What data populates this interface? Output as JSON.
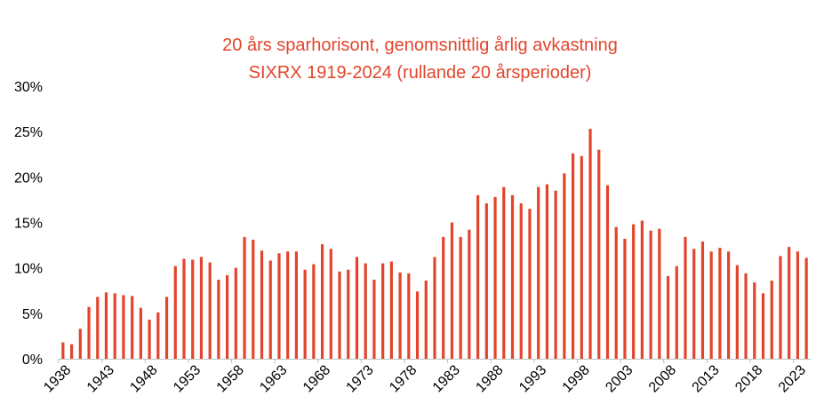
{
  "chart_data": {
    "type": "bar",
    "title": "20 års sparhorisont, genomsnittlig årlig avkastning",
    "subtitle": "SIXRX 1919-2024 (rullande 20 årsperioder)",
    "xlabel": "",
    "ylabel": "",
    "ylim": [
      0,
      30
    ],
    "yticks": [
      "0%",
      "5%",
      "10%",
      "15%",
      "20%",
      "25%",
      "30%"
    ],
    "ytick_values": [
      0,
      5,
      10,
      15,
      20,
      25,
      30
    ],
    "xtick_labels": [
      "1938",
      "1943",
      "1948",
      "1953",
      "1958",
      "1963",
      "1968",
      "1973",
      "1978",
      "1983",
      "1988",
      "1993",
      "1998",
      "2003",
      "2008",
      "2013",
      "2018",
      "2023"
    ],
    "categories": [
      1938,
      1939,
      1940,
      1941,
      1942,
      1943,
      1944,
      1945,
      1946,
      1947,
      1948,
      1949,
      1950,
      1951,
      1952,
      1953,
      1954,
      1955,
      1956,
      1957,
      1958,
      1959,
      1960,
      1961,
      1962,
      1963,
      1964,
      1965,
      1966,
      1967,
      1968,
      1969,
      1970,
      1971,
      1972,
      1973,
      1974,
      1975,
      1976,
      1977,
      1978,
      1979,
      1980,
      1981,
      1982,
      1983,
      1984,
      1985,
      1986,
      1987,
      1988,
      1989,
      1990,
      1991,
      1992,
      1993,
      1994,
      1995,
      1996,
      1997,
      1998,
      1999,
      2000,
      2001,
      2002,
      2003,
      2004,
      2005,
      2006,
      2007,
      2008,
      2009,
      2010,
      2011,
      2012,
      2013,
      2014,
      2015,
      2016,
      2017,
      2018,
      2019,
      2020,
      2021,
      2022,
      2023,
      2024
    ],
    "values": [
      1.8,
      1.6,
      3.3,
      5.7,
      6.8,
      7.3,
      7.2,
      7.0,
      6.9,
      5.6,
      4.3,
      5.1,
      6.8,
      10.2,
      11.0,
      10.9,
      11.2,
      10.6,
      8.7,
      9.2,
      10.0,
      13.4,
      13.1,
      11.9,
      10.8,
      11.6,
      11.8,
      11.8,
      9.8,
      10.4,
      12.6,
      12.1,
      9.6,
      9.8,
      11.2,
      10.5,
      8.7,
      10.5,
      10.7,
      9.5,
      9.4,
      7.4,
      8.6,
      11.2,
      13.4,
      15.0,
      13.4,
      14.2,
      18.0,
      17.1,
      17.8,
      18.9,
      18.0,
      17.1,
      16.5,
      18.9,
      19.2,
      18.5,
      20.4,
      22.6,
      22.3,
      25.3,
      23.0,
      19.1,
      14.5,
      13.2,
      14.8,
      15.2,
      14.1,
      14.3,
      9.1,
      10.2,
      13.4,
      12.1,
      12.9,
      11.8,
      12.2,
      11.8,
      10.3,
      9.4,
      8.4,
      7.2,
      8.6,
      11.3,
      12.3,
      11.8,
      11.1
    ],
    "colors": {
      "bar": "#e2452b",
      "title": "#e2452b",
      "axis": "#bfbfbf"
    },
    "grid": false,
    "legend": "none"
  }
}
